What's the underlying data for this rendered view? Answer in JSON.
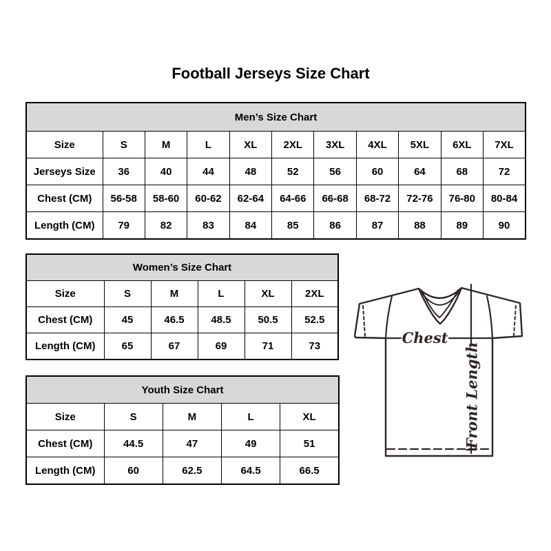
{
  "page": {
    "title": "Football Jerseys Size Chart"
  },
  "tables": {
    "men": {
      "title": "Men’s Size Chart",
      "rows": [
        [
          "Size",
          "S",
          "M",
          "L",
          "XL",
          "2XL",
          "3XL",
          "4XL",
          "5XL",
          "6XL",
          "7XL"
        ],
        [
          "Jerseys Size",
          "36",
          "40",
          "44",
          "48",
          "52",
          "56",
          "60",
          "64",
          "68",
          "72"
        ],
        [
          "Chest (CM)",
          "56-58",
          "58-60",
          "60-62",
          "62-64",
          "64-66",
          "66-68",
          "68-72",
          "72-76",
          "76-80",
          "80-84"
        ],
        [
          "Length (CM)",
          "79",
          "82",
          "83",
          "84",
          "85",
          "86",
          "87",
          "88",
          "89",
          "90"
        ]
      ]
    },
    "women": {
      "title": "Women’s Size Chart",
      "rows": [
        [
          "Size",
          "S",
          "M",
          "L",
          "XL",
          "2XL"
        ],
        [
          "Chest (CM)",
          "45",
          "46.5",
          "48.5",
          "50.5",
          "52.5"
        ],
        [
          "Length (CM)",
          "65",
          "67",
          "69",
          "71",
          "73"
        ]
      ]
    },
    "youth": {
      "title": "Youth Size Chart",
      "rows": [
        [
          "Size",
          "S",
          "M",
          "L",
          "XL"
        ],
        [
          "Chest (CM)",
          "44.5",
          "47",
          "49",
          "51"
        ],
        [
          "Length (CM)",
          "60",
          "62.5",
          "64.5",
          "66.5"
        ]
      ]
    }
  },
  "diagram": {
    "chest_label": "Chest",
    "front_length_label": "Front Length"
  },
  "colors": {
    "table_header_bg": "#d8d8d8",
    "table_border": "#000000",
    "text": "#000000",
    "diagram_line": "#2e2623"
  }
}
